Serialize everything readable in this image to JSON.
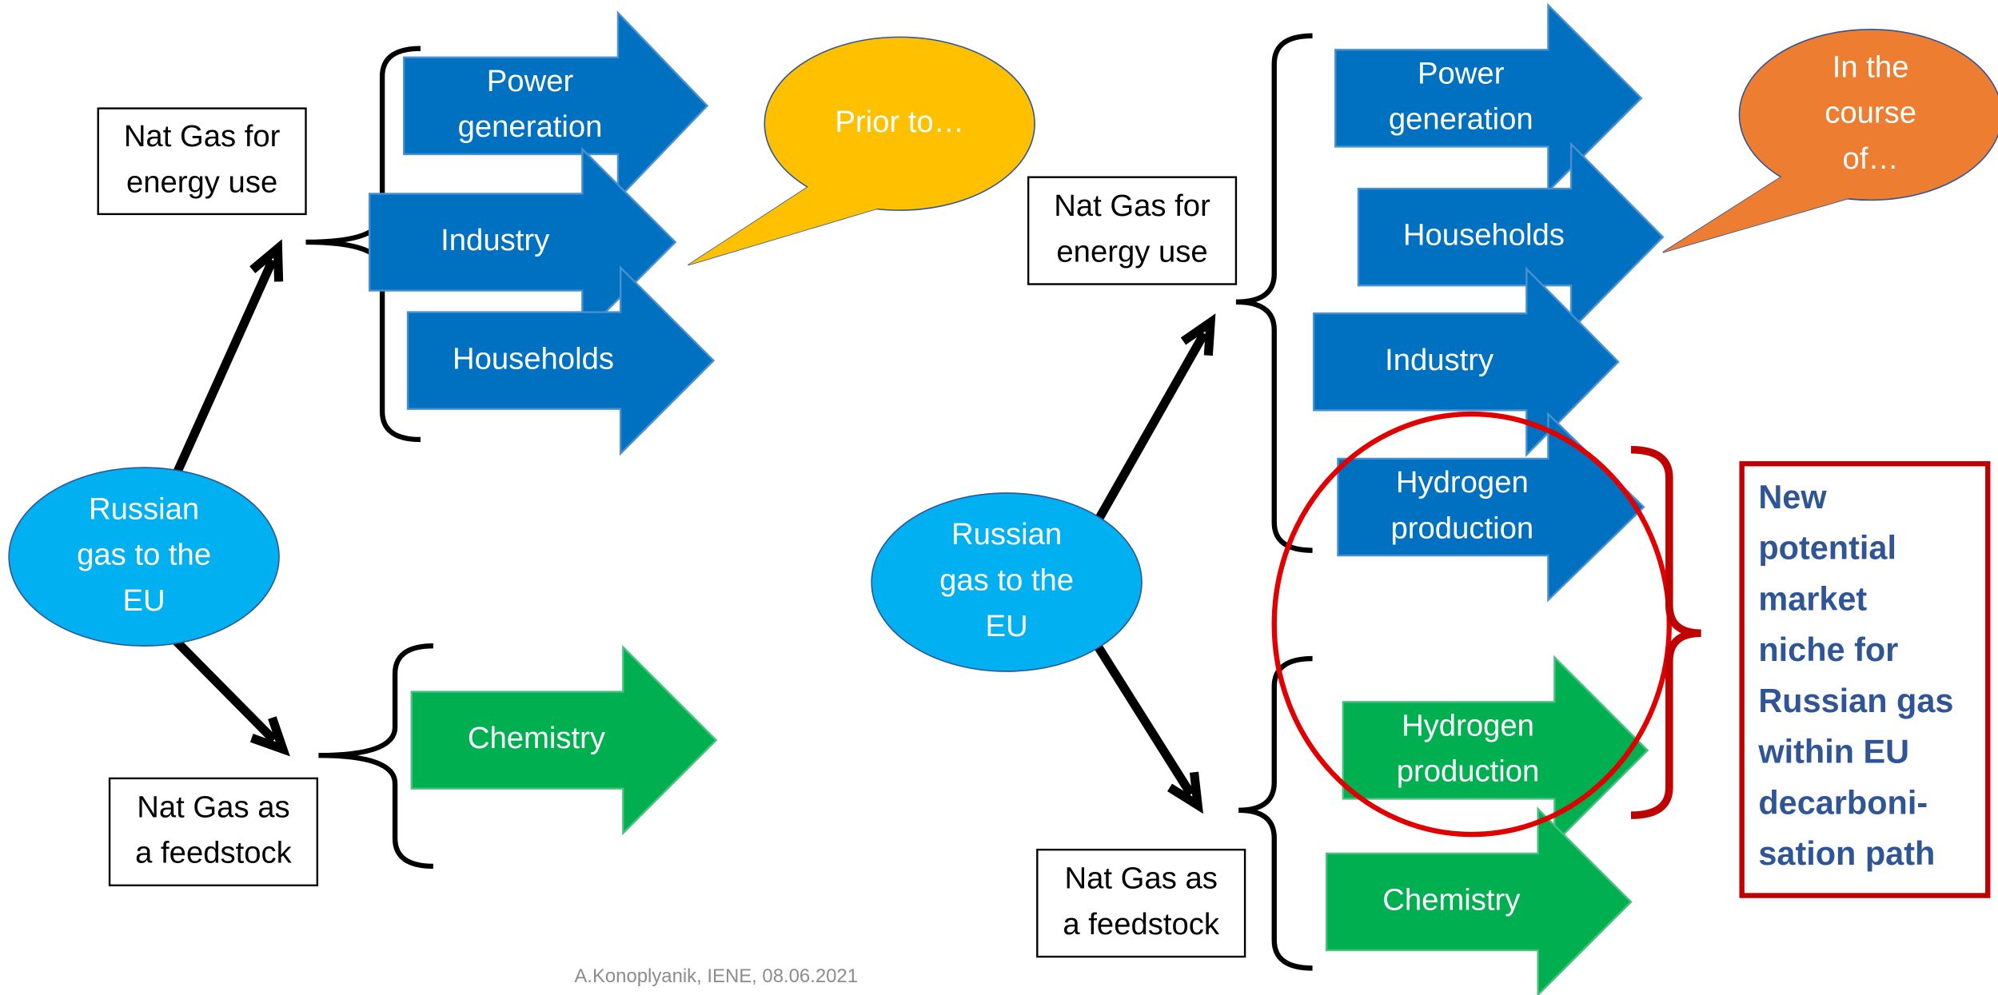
{
  "left": {
    "bubble": [
      "Prior to…"
    ],
    "source": [
      "Russian",
      "gas to the",
      "EU"
    ],
    "energy_box": [
      "Nat Gas for",
      "energy use"
    ],
    "feedstock_box": [
      "Nat Gas as",
      "a feedstock"
    ],
    "energy_arrows": [
      [
        "Power",
        "generation"
      ],
      [
        "Industry"
      ],
      [
        "Households"
      ]
    ],
    "feedstock_arrows": [
      [
        "Chemistry"
      ]
    ]
  },
  "right": {
    "bubble": [
      "In the",
      "course",
      "of…"
    ],
    "source": [
      "Russian",
      "gas to the",
      "EU"
    ],
    "energy_box": [
      "Nat Gas for",
      "energy use"
    ],
    "feedstock_box": [
      "Nat Gas as",
      "a feedstock"
    ],
    "energy_arrows": [
      [
        "Power",
        "generation"
      ],
      [
        "Households"
      ],
      [
        "Industry"
      ],
      [
        "Hydrogen",
        "production"
      ]
    ],
    "feedstock_arrows": [
      [
        "Hydrogen",
        "production"
      ],
      [
        "Chemistry"
      ]
    ]
  },
  "niche": [
    "New",
    "potential",
    "market",
    "niche for",
    "Russian gas",
    "within EU",
    "decarboni-",
    "sation path"
  ],
  "footer": "A.Konoplyanik, IENE, 08.06.2021"
}
